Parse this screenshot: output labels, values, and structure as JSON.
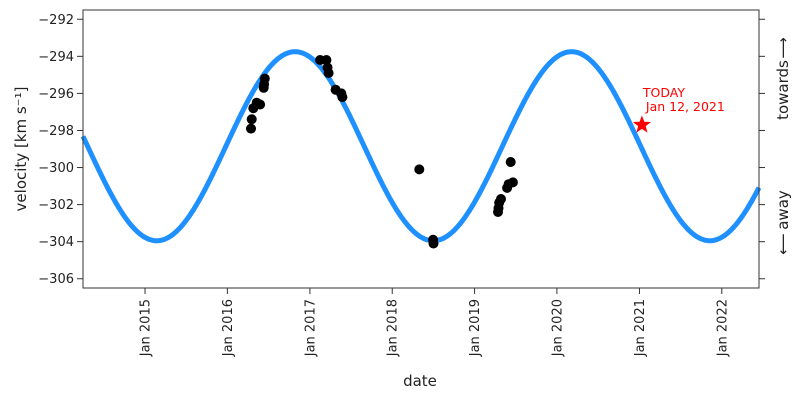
{
  "chart_data": {
    "type": "scatter",
    "title": "",
    "xlabel": "date",
    "ylabel": "velocity [km s⁻¹]",
    "right_axis_labels": {
      "top": "towards",
      "bottom": "away"
    },
    "right_axis_arrows": {
      "top": "⟶",
      "bottom": "⟵"
    },
    "xlim": [
      "2014-04-01",
      "2022-06-15"
    ],
    "ylim": [
      -306.5,
      -291.5
    ],
    "x_ticks": [
      {
        "date": "2015-01-01",
        "label": "Jan 2015"
      },
      {
        "date": "2016-01-01",
        "label": "Jan 2016"
      },
      {
        "date": "2017-01-01",
        "label": "Jan 2017"
      },
      {
        "date": "2018-01-01",
        "label": "Jan 2018"
      },
      {
        "date": "2019-01-01",
        "label": "Jan 2019"
      },
      {
        "date": "2020-01-01",
        "label": "Jan 2020"
      },
      {
        "date": "2021-01-01",
        "label": "Jan 2021"
      },
      {
        "date": "2022-01-01",
        "label": "Jan 2022"
      }
    ],
    "y_ticks": [
      {
        "value": -292,
        "label": "−292"
      },
      {
        "value": -294,
        "label": "−294"
      },
      {
        "value": -296,
        "label": "−296"
      },
      {
        "value": -298,
        "label": "−298"
      },
      {
        "value": -300,
        "label": "−300"
      },
      {
        "value": -302,
        "label": "−302"
      },
      {
        "value": -304,
        "label": "−304"
      },
      {
        "value": -306,
        "label": "−306"
      }
    ],
    "grid": false,
    "series": [
      {
        "type": "line",
        "color": "#1e90ff",
        "model": {
          "kind": "sinusoid",
          "mean": -298.85,
          "amplitude": 5.1,
          "period_days": 1226,
          "peak_date": "2016-10-27"
        }
      },
      {
        "type": "scatter",
        "color": "#000000",
        "points": [
          {
            "x": "2016-04-15",
            "y": -297.9
          },
          {
            "x": "2016-04-18",
            "y": -297.4
          },
          {
            "x": "2016-04-25",
            "y": -296.8
          },
          {
            "x": "2016-05-10",
            "y": -296.5
          },
          {
            "x": "2016-05-25",
            "y": -296.6
          },
          {
            "x": "2016-06-10",
            "y": -295.7
          },
          {
            "x": "2016-06-12",
            "y": -295.5
          },
          {
            "x": "2016-06-15",
            "y": -295.2
          },
          {
            "x": "2017-02-15",
            "y": -294.2
          },
          {
            "x": "2017-03-15",
            "y": -294.2
          },
          {
            "x": "2017-03-20",
            "y": -294.6
          },
          {
            "x": "2017-03-25",
            "y": -294.9
          },
          {
            "x": "2017-04-25",
            "y": -295.8
          },
          {
            "x": "2017-05-20",
            "y": -296.0
          },
          {
            "x": "2017-05-25",
            "y": -296.2
          },
          {
            "x": "2018-05-01",
            "y": -300.1
          },
          {
            "x": "2018-07-01",
            "y": -303.9
          },
          {
            "x": "2018-07-03",
            "y": -304.1
          },
          {
            "x": "2019-04-15",
            "y": -302.4
          },
          {
            "x": "2019-04-17",
            "y": -302.2
          },
          {
            "x": "2019-04-20",
            "y": -301.9
          },
          {
            "x": "2019-04-28",
            "y": -301.7
          },
          {
            "x": "2019-05-25",
            "y": -301.1
          },
          {
            "x": "2019-06-01",
            "y": -300.9
          },
          {
            "x": "2019-06-20",
            "y": -300.8
          },
          {
            "x": "2019-06-10",
            "y": -299.7
          }
        ]
      }
    ],
    "marker": {
      "x": "2021-01-12",
      "y": -297.7,
      "color": "#ff0000",
      "symbol": "star",
      "label_line1": "TODAY",
      "label_line2": "Jan 12, 2021"
    }
  }
}
